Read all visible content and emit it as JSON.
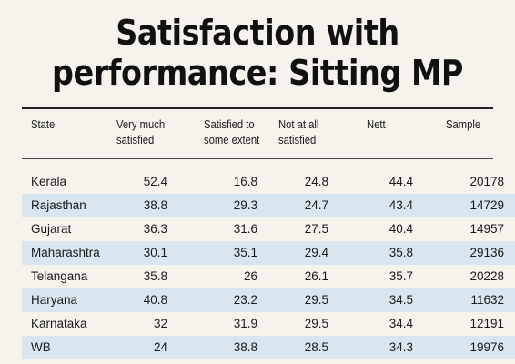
{
  "chart_data": {
    "type": "table",
    "title_lines": [
      "Satisfaction with",
      "performance: Sitting MP"
    ],
    "columns": [
      [
        "State"
      ],
      [
        "Very much",
        "satisfied"
      ],
      [
        "Satisfied to",
        "some extent"
      ],
      [
        "Not at all",
        "satisfied"
      ],
      [
        "Nett"
      ],
      [
        "Sample"
      ]
    ],
    "rows": [
      {
        "state": "Kerala",
        "very_much": "52.4",
        "some_extent": "16.8",
        "not_at_all": "24.8",
        "nett": "44.4",
        "sample": "20178"
      },
      {
        "state": "Rajasthan",
        "very_much": "38.8",
        "some_extent": "29.3",
        "not_at_all": "24.7",
        "nett": "43.4",
        "sample": "14729"
      },
      {
        "state": "Gujarat",
        "very_much": "36.3",
        "some_extent": "31.6",
        "not_at_all": "27.5",
        "nett": "40.4",
        "sample": "14957"
      },
      {
        "state": "Maharashtra",
        "very_much": "30.1",
        "some_extent": "35.1",
        "not_at_all": "29.4",
        "nett": "35.8",
        "sample": "29136"
      },
      {
        "state": "Telangana",
        "very_much": "35.8",
        "some_extent": "26",
        "not_at_all": "26.1",
        "nett": "35.7",
        "sample": "20228"
      },
      {
        "state": "Haryana",
        "very_much": "40.8",
        "some_extent": "23.2",
        "not_at_all": "29.5",
        "nett": "34.5",
        "sample": "11632"
      },
      {
        "state": "Karnataka",
        "very_much": "32",
        "some_extent": "31.9",
        "not_at_all": "29.5",
        "nett": "34.4",
        "sample": "12191"
      },
      {
        "state": "WB",
        "very_much": "24",
        "some_extent": "38.8",
        "not_at_all": "28.5",
        "nett": "34.3",
        "sample": "19976"
      }
    ],
    "colors": {
      "background": "#f6f3ec",
      "row_shade": "#d9e6ef",
      "text": "#1a1a1a"
    }
  }
}
